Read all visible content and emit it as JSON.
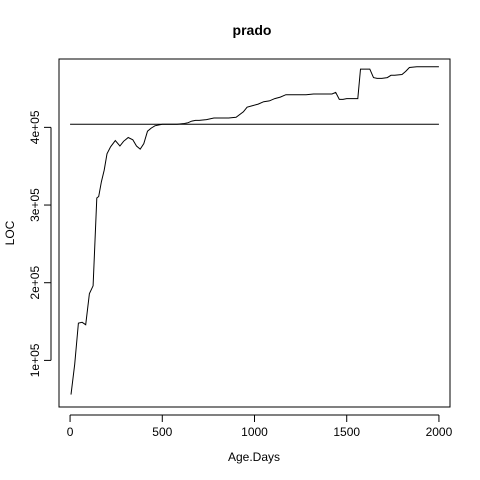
{
  "chart_data": {
    "type": "line",
    "title": "prado",
    "xlabel": "Age.Days",
    "ylabel": "LOC",
    "xlim": [
      -60,
      2060
    ],
    "ylim": [
      40000,
      488000
    ],
    "x_ticks": [
      {
        "value": 0,
        "label": "0"
      },
      {
        "value": 500,
        "label": "500"
      },
      {
        "value": 1000,
        "label": "1000"
      },
      {
        "value": 1500,
        "label": "1500"
      },
      {
        "value": 2000,
        "label": "2000"
      }
    ],
    "y_ticks": [
      {
        "value": 100000,
        "label": "1e+05"
      },
      {
        "value": 200000,
        "label": "2e+05"
      },
      {
        "value": 300000,
        "label": "3e+05"
      },
      {
        "value": 400000,
        "label": "4e+05"
      }
    ],
    "grid": false,
    "reference_line": {
      "y": 404000,
      "x_from": 0,
      "x_to": 2000
    },
    "series": [
      {
        "color": "#000000",
        "x": [
          5,
          25,
          45,
          65,
          85,
          105,
          125,
          145,
          155,
          170,
          185,
          200,
          220,
          245,
          270,
          290,
          315,
          340,
          360,
          380,
          400,
          420,
          440,
          460,
          480,
          500,
          540,
          580,
          620,
          640,
          660,
          680,
          700,
          740,
          780,
          820,
          860,
          900,
          940,
          960,
          990,
          1020,
          1050,
          1080,
          1110,
          1140,
          1170,
          1200,
          1240,
          1280,
          1320,
          1360,
          1400,
          1420,
          1440,
          1460,
          1480,
          1500,
          1530,
          1560,
          1575,
          1600,
          1625,
          1645,
          1665,
          1690,
          1720,
          1740,
          1760,
          1800,
          1820,
          1840,
          1880,
          1920,
          1960,
          2000
        ],
        "y": [
          56000,
          95000,
          148000,
          149000,
          146000,
          186000,
          196000,
          309000,
          311000,
          330000,
          345000,
          366000,
          375000,
          383000,
          376000,
          382000,
          387000,
          384000,
          376000,
          372000,
          379000,
          395000,
          399000,
          402000,
          403000,
          404000,
          404000,
          404000,
          405000,
          406000,
          408000,
          409000,
          409000,
          410000,
          412000,
          412000,
          412000,
          413000,
          420000,
          426000,
          428000,
          430000,
          433000,
          434000,
          437000,
          439000,
          442000,
          442000,
          442000,
          442000,
          443000,
          443000,
          443000,
          443000,
          445000,
          436000,
          436000,
          437000,
          437000,
          437000,
          475000,
          475000,
          475000,
          464000,
          463000,
          463000,
          464000,
          467000,
          467000,
          468000,
          472000,
          477000,
          478000,
          478000,
          478000,
          478000
        ]
      }
    ]
  }
}
